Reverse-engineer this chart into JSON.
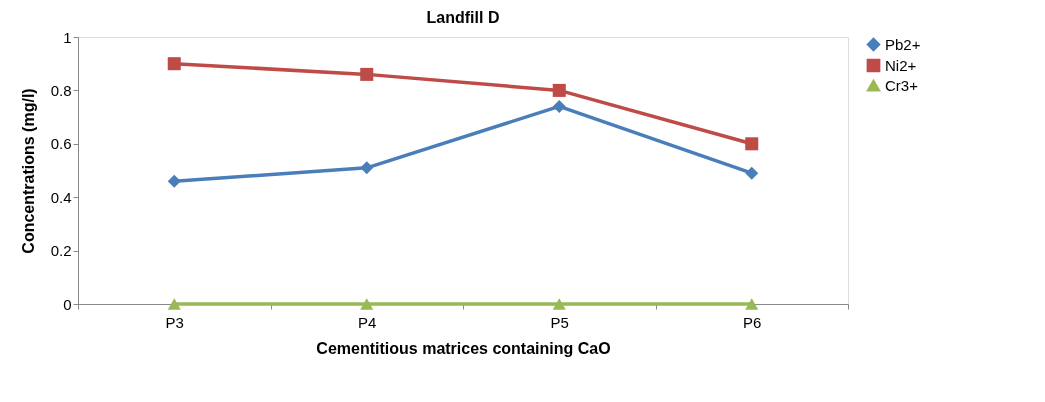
{
  "chart_data": {
    "type": "line",
    "title": "Landfill D",
    "xlabel": "Cementitious matrices containing CaO",
    "ylabel": "Concentrations (mg/l)",
    "categories": [
      "P3",
      "P4",
      "P5",
      "P6"
    ],
    "series": [
      {
        "name": "Pb2+",
        "color": "#4a7ebb",
        "marker": "diamond",
        "values": [
          0.46,
          0.51,
          0.74,
          0.49
        ]
      },
      {
        "name": "Ni2+",
        "color": "#be4b48",
        "marker": "square",
        "values": [
          0.9,
          0.86,
          0.8,
          0.6
        ]
      },
      {
        "name": "Cr3+",
        "color": "#98b954",
        "marker": "triangle",
        "values": [
          0.0,
          0.0,
          0.0,
          0.0
        ]
      }
    ],
    "ylim": [
      0,
      1
    ],
    "yticks": [
      0,
      0.2,
      0.4,
      0.6,
      0.8,
      1
    ],
    "grid": false,
    "legend": "right",
    "line_style": "solid"
  }
}
